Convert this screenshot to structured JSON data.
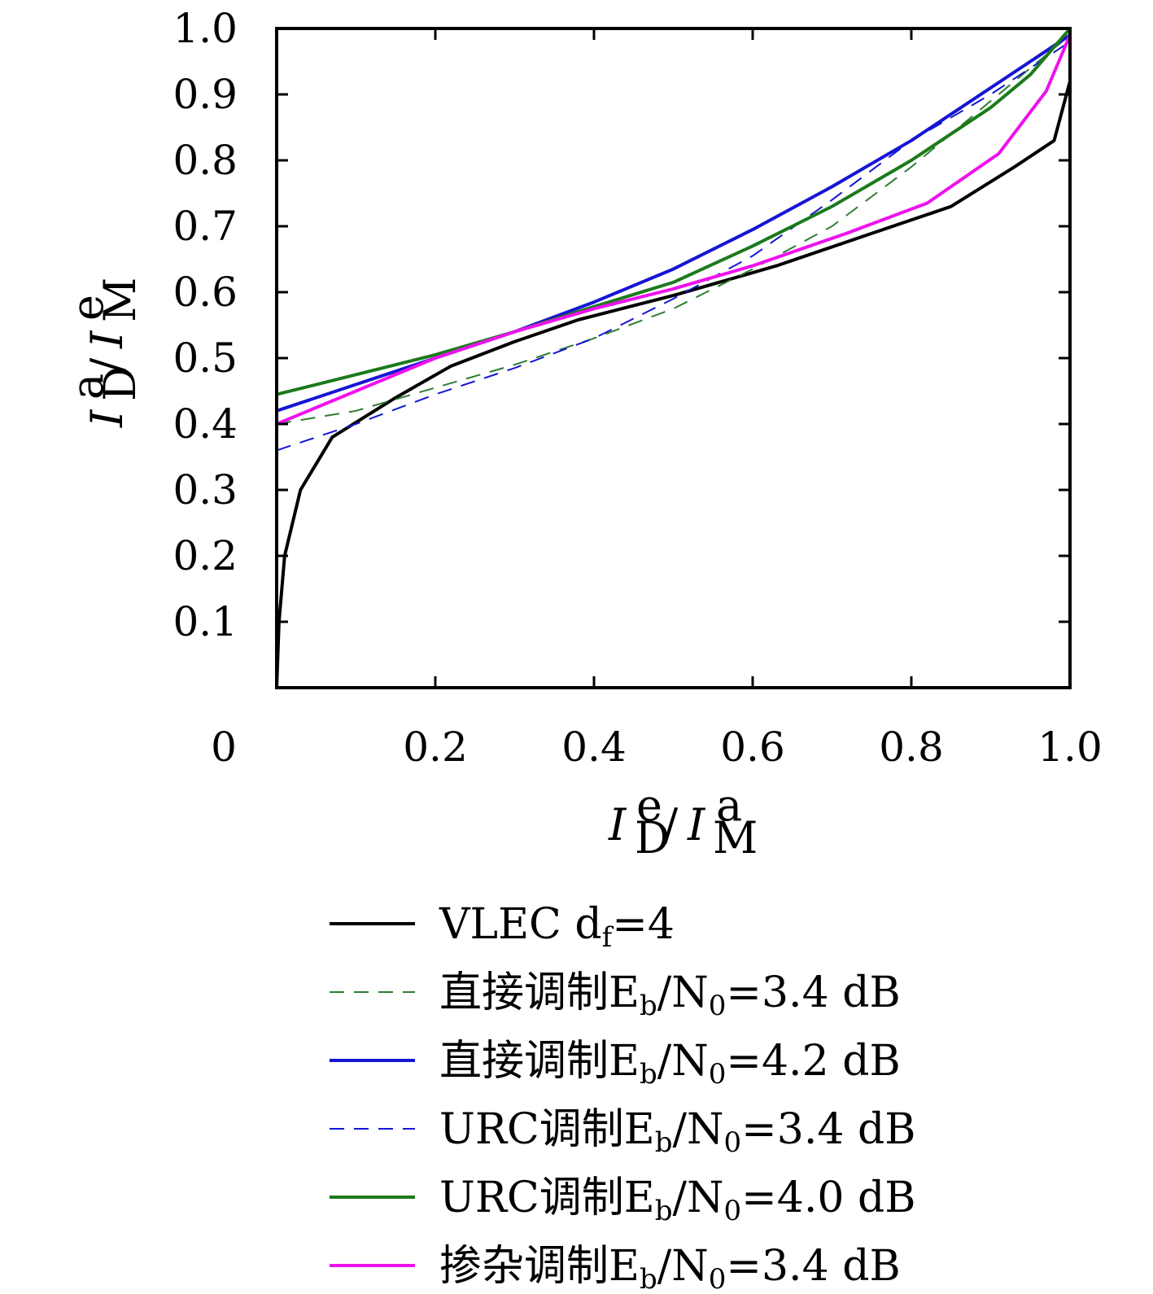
{
  "chart_data": {
    "type": "line",
    "xlabel": "I_D^e / I_M^a",
    "ylabel": "I_D^a / I_M^e",
    "xlim": [
      0,
      1.0
    ],
    "ylim": [
      0,
      1.0
    ],
    "x_ticks": [
      "0",
      "0.2",
      "0.4",
      "0.6",
      "0.8",
      "1.0"
    ],
    "x_tick_values": [
      0,
      0.2,
      0.4,
      0.6,
      0.8,
      1.0
    ],
    "y_ticks": [
      "0.1",
      "0.2",
      "0.3",
      "0.4",
      "0.5",
      "0.6",
      "0.7",
      "0.8",
      "0.9",
      "1.0"
    ],
    "y_tick_values": [
      0.1,
      0.2,
      0.3,
      0.4,
      0.5,
      0.6,
      0.7,
      0.8,
      0.9,
      1.0
    ],
    "grid": false,
    "legend_position": "bottom",
    "series": [
      {
        "name": "VLEC d_f=4",
        "color": "#000000",
        "dash": "solid",
        "points": [
          [
            0.0,
            0.0
          ],
          [
            0.003,
            0.1
          ],
          [
            0.01,
            0.2
          ],
          [
            0.03,
            0.3
          ],
          [
            0.07,
            0.38
          ],
          [
            0.15,
            0.44
          ],
          [
            0.22,
            0.488
          ],
          [
            0.3,
            0.525
          ],
          [
            0.38,
            0.558
          ],
          [
            0.5,
            0.595
          ],
          [
            0.63,
            0.64
          ],
          [
            0.74,
            0.685
          ],
          [
            0.85,
            0.73
          ],
          [
            0.93,
            0.79
          ],
          [
            0.98,
            0.83
          ],
          [
            1.0,
            0.92
          ]
        ]
      },
      {
        "name": "直接调制E_b/N_0=3.4 dB",
        "color": "#2e7d32",
        "dash": "dashed",
        "points": [
          [
            0.0,
            0.4
          ],
          [
            0.1,
            0.42
          ],
          [
            0.2,
            0.455
          ],
          [
            0.3,
            0.49
          ],
          [
            0.4,
            0.53
          ],
          [
            0.5,
            0.575
          ],
          [
            0.6,
            0.635
          ],
          [
            0.7,
            0.7
          ],
          [
            0.8,
            0.79
          ],
          [
            0.9,
            0.89
          ],
          [
            0.95,
            0.94
          ],
          [
            1.0,
            0.99
          ]
        ]
      },
      {
        "name": "直接调制E_b/N_0=4.2 dB",
        "color": "#1515d4",
        "dash": "solid",
        "points": [
          [
            0.0,
            0.42
          ],
          [
            0.1,
            0.46
          ],
          [
            0.2,
            0.5
          ],
          [
            0.3,
            0.54
          ],
          [
            0.4,
            0.585
          ],
          [
            0.5,
            0.635
          ],
          [
            0.6,
            0.695
          ],
          [
            0.7,
            0.76
          ],
          [
            0.8,
            0.83
          ],
          [
            0.9,
            0.91
          ],
          [
            0.95,
            0.95
          ],
          [
            1.0,
            0.99
          ]
        ]
      },
      {
        "name": "URC调制E_b/N_0=3.4 dB",
        "color": "#1515d4",
        "dash": "dashed",
        "points": [
          [
            0.0,
            0.36
          ],
          [
            0.1,
            0.4
          ],
          [
            0.2,
            0.445
          ],
          [
            0.3,
            0.485
          ],
          [
            0.4,
            0.53
          ],
          [
            0.5,
            0.59
          ],
          [
            0.6,
            0.655
          ],
          [
            0.7,
            0.74
          ],
          [
            0.8,
            0.83
          ],
          [
            0.9,
            0.9
          ],
          [
            1.0,
            0.98
          ]
        ]
      },
      {
        "name": "URC调制E_b/N_0=4.0 dB",
        "color": "#1b7a1b",
        "dash": "solid",
        "points": [
          [
            0.0,
            0.445
          ],
          [
            0.1,
            0.475
          ],
          [
            0.2,
            0.505
          ],
          [
            0.3,
            0.54
          ],
          [
            0.4,
            0.578
          ],
          [
            0.5,
            0.615
          ],
          [
            0.6,
            0.67
          ],
          [
            0.7,
            0.73
          ],
          [
            0.8,
            0.8
          ],
          [
            0.9,
            0.88
          ],
          [
            0.95,
            0.93
          ],
          [
            1.0,
            1.0
          ]
        ]
      },
      {
        "name": "掺杂调制E_b/N_0=3.4 dB",
        "color": "#ee11ee",
        "dash": "solid",
        "points": [
          [
            0.0,
            0.4
          ],
          [
            0.1,
            0.45
          ],
          [
            0.2,
            0.5
          ],
          [
            0.3,
            0.54
          ],
          [
            0.4,
            0.575
          ],
          [
            0.5,
            0.605
          ],
          [
            0.6,
            0.64
          ],
          [
            0.72,
            0.69
          ],
          [
            0.82,
            0.735
          ],
          [
            0.91,
            0.81
          ],
          [
            0.97,
            0.905
          ],
          [
            1.0,
            0.99
          ]
        ]
      }
    ]
  }
}
